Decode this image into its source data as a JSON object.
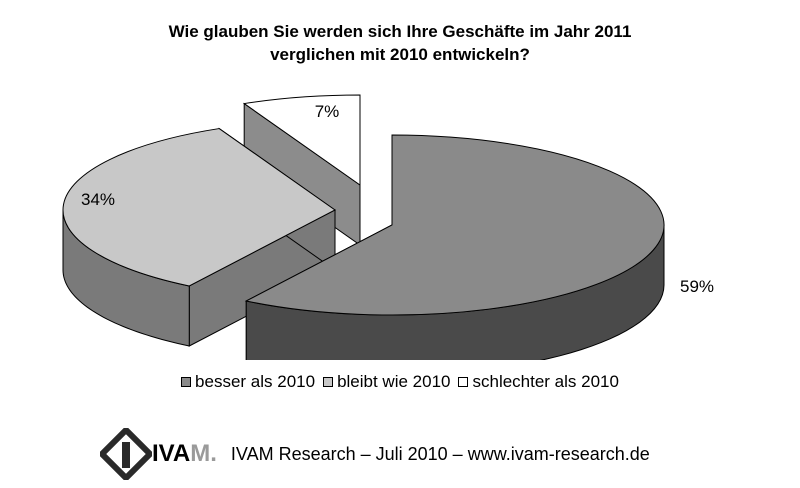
{
  "chart_data": {
    "type": "pie",
    "title_lines": [
      "Wie glauben Sie werden sich Ihre Geschäfte im Jahr 2011",
      "verglichen mit 2010 entwickeln?"
    ],
    "slices": [
      {
        "name": "besser als 2010",
        "value": 59,
        "label": "59%",
        "color": "#8a8a8a",
        "side_color": "#4a4a4a"
      },
      {
        "name": "bleibt wie 2010",
        "value": 34,
        "label": "34%",
        "color": "#c8c8c8",
        "side_color": "#7a7a7a"
      },
      {
        "name": "schlechter als 2010",
        "value": 7,
        "label": "7%",
        "color": "#ffffff",
        "side_color": "#8c8c8c"
      }
    ],
    "legend_position": "bottom"
  },
  "logo": {
    "text_main": "IVA",
    "text_accent": "M."
  },
  "footer": {
    "text": "IVAM Research – Juli 2010 – www.ivam-research.de"
  }
}
